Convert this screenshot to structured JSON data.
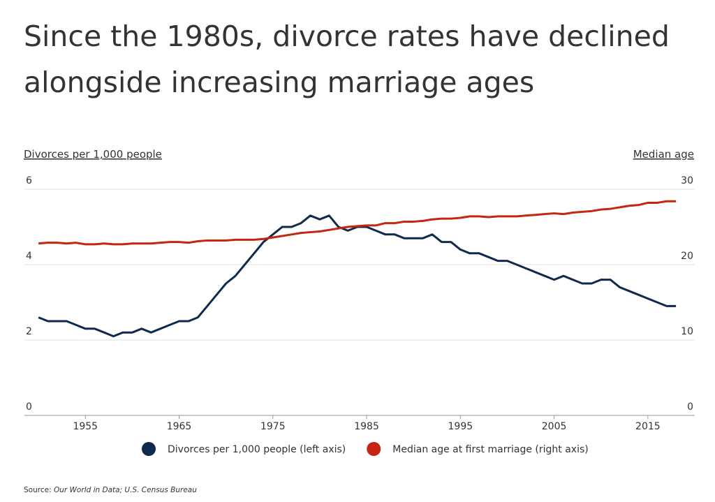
{
  "chart_data": {
    "type": "line",
    "title": [
      "Since the 1980s, divorce rates have declined",
      "alongside increasing marriage ages"
    ],
    "y_axis_label": "Divorces per 1,000 people",
    "y2_axis_label": "Median age",
    "source_label": "Source:",
    "source": "Our World in Data; U.S. Census Bureau",
    "x": [
      1950,
      1951,
      1952,
      1953,
      1954,
      1955,
      1956,
      1957,
      1958,
      1959,
      1960,
      1961,
      1962,
      1963,
      1964,
      1965,
      1966,
      1967,
      1968,
      1969,
      1970,
      1971,
      1972,
      1973,
      1974,
      1975,
      1976,
      1977,
      1978,
      1979,
      1980,
      1981,
      1982,
      1983,
      1984,
      1985,
      1986,
      1987,
      1988,
      1989,
      1990,
      1991,
      1992,
      1993,
      1994,
      1995,
      1996,
      1997,
      1998,
      1999,
      2000,
      2001,
      2002,
      2003,
      2004,
      2005,
      2006,
      2007,
      2008,
      2009,
      2010,
      2011,
      2012,
      2013,
      2014,
      2015,
      2016,
      2017,
      2018
    ],
    "series": [
      {
        "name": "Divorces per 1,000 people (left axis)",
        "color": "#0f2a4d",
        "axis": "y",
        "values": [
          2.6,
          2.5,
          2.5,
          2.5,
          2.4,
          2.3,
          2.3,
          2.2,
          2.1,
          2.2,
          2.2,
          2.3,
          2.2,
          2.3,
          2.4,
          2.5,
          2.5,
          2.6,
          2.9,
          3.2,
          3.5,
          3.7,
          4.0,
          4.3,
          4.6,
          4.8,
          5.0,
          5.0,
          5.1,
          5.3,
          5.2,
          5.3,
          5.0,
          4.9,
          5.0,
          5.0,
          4.9,
          4.8,
          4.8,
          4.7,
          4.7,
          4.7,
          4.8,
          4.6,
          4.6,
          4.4,
          4.3,
          4.3,
          4.2,
          4.1,
          4.1,
          4.0,
          3.9,
          3.8,
          3.7,
          3.6,
          3.7,
          3.6,
          3.5,
          3.5,
          3.6,
          3.6,
          3.4,
          3.3,
          3.2,
          3.1,
          3.0,
          2.9,
          2.9
        ]
      },
      {
        "name": "Median age at first marriage (right axis)",
        "color": "#c4260f",
        "axis": "y2",
        "values": [
          22.8,
          22.9,
          22.9,
          22.8,
          22.9,
          22.7,
          22.7,
          22.8,
          22.7,
          22.7,
          22.8,
          22.8,
          22.8,
          22.9,
          23.0,
          23.0,
          22.9,
          23.1,
          23.2,
          23.2,
          23.2,
          23.3,
          23.3,
          23.3,
          23.4,
          23.6,
          23.8,
          24.0,
          24.2,
          24.3,
          24.4,
          24.6,
          24.8,
          25.0,
          25.1,
          25.2,
          25.2,
          25.5,
          25.5,
          25.7,
          25.7,
          25.8,
          26.0,
          26.1,
          26.1,
          26.2,
          26.4,
          26.4,
          26.3,
          26.4,
          26.4,
          26.4,
          26.5,
          26.6,
          26.7,
          26.8,
          26.7,
          26.9,
          27.0,
          27.1,
          27.3,
          27.4,
          27.6,
          27.8,
          27.9,
          28.2,
          28.2,
          28.4,
          28.4
        ]
      }
    ],
    "xlim": [
      1948.5,
      2020
    ],
    "xticks": [
      1955,
      1965,
      1975,
      1985,
      1995,
      2005,
      2015
    ],
    "ylim": [
      0,
      6
    ],
    "yticks": [
      0,
      2,
      4,
      6
    ],
    "y2lim": [
      0,
      30
    ],
    "y2ticks": [
      0,
      10,
      20,
      30
    ],
    "grid": true,
    "legend": "bottom"
  }
}
